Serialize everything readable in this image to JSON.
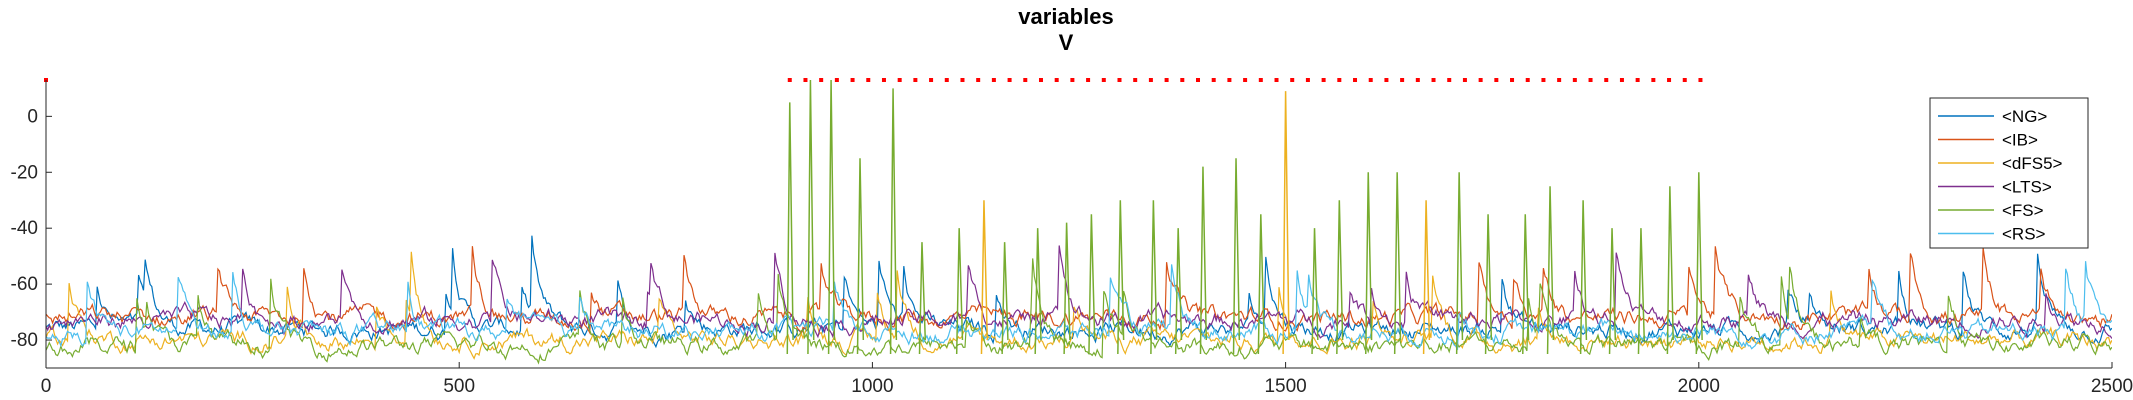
{
  "chart_data": {
    "type": "line",
    "title": [
      "variables",
      "V"
    ],
    "xlabel": "",
    "ylabel": "",
    "xlim": [
      0,
      2500
    ],
    "ylim": [
      -90,
      13
    ],
    "x_ticks": [
      0,
      500,
      1000,
      1500,
      2000,
      2500
    ],
    "y_ticks": [
      -80,
      -60,
      -40,
      -20,
      0
    ],
    "grid": false,
    "legend_position": "top-right",
    "legend": [
      "<NG>",
      "<IB>",
      "<dFS5>",
      "<LTS>",
      "<FS>",
      "<RS>"
    ],
    "series": [
      {
        "name": "<NG>",
        "color": "#0072BD",
        "baseline": -76
      },
      {
        "name": "<IB>",
        "color": "#D95319",
        "baseline": -72
      },
      {
        "name": "<dFS5>",
        "color": "#EDB120",
        "baseline": -80
      },
      {
        "name": "<LTS>",
        "color": "#7E2F8E",
        "baseline": -73
      },
      {
        "name": "<FS>",
        "color": "#77AC30",
        "baseline": -82
      },
      {
        "name": "<RS>",
        "color": "#4DBEEE",
        "baseline": -77
      }
    ],
    "raster_markers": {
      "color": "#FF0000",
      "y": 13,
      "x": [
        0,
        900,
        919,
        938,
        957,
        976,
        995,
        1014,
        1033,
        1052,
        1071,
        1090,
        1109,
        1128,
        1147,
        1166,
        1185,
        1204,
        1223,
        1242,
        1261,
        1280,
        1299,
        1318,
        1337,
        1356,
        1375,
        1394,
        1413,
        1432,
        1451,
        1470,
        1489,
        1508,
        1527,
        1546,
        1565,
        1584,
        1603,
        1622,
        1641,
        1660,
        1679,
        1698,
        1717,
        1736,
        1755,
        1774,
        1793,
        1812,
        1831,
        1850,
        1869,
        1888,
        1907,
        1926,
        1945,
        1964,
        1983,
        2002
      ]
    },
    "spikes": [
      {
        "x": 900,
        "y": 5,
        "series": "<FS>"
      },
      {
        "x": 925,
        "y": 13,
        "series": "<FS>"
      },
      {
        "x": 950,
        "y": 13,
        "series": "<FS>"
      },
      {
        "x": 985,
        "y": -15,
        "series": "<FS>"
      },
      {
        "x": 1025,
        "y": 10,
        "series": "<FS>"
      },
      {
        "x": 1060,
        "y": -45,
        "series": "<FS>"
      },
      {
        "x": 1105,
        "y": -40,
        "series": "<FS>"
      },
      {
        "x": 1135,
        "y": -30,
        "series": "<dFS5>"
      },
      {
        "x": 1160,
        "y": -45,
        "series": "<FS>"
      },
      {
        "x": 1200,
        "y": -40,
        "series": "<FS>"
      },
      {
        "x": 1235,
        "y": -38,
        "series": "<FS>"
      },
      {
        "x": 1265,
        "y": -35,
        "series": "<FS>"
      },
      {
        "x": 1300,
        "y": -30,
        "series": "<FS>"
      },
      {
        "x": 1340,
        "y": -30,
        "series": "<FS>"
      },
      {
        "x": 1370,
        "y": -40,
        "series": "<FS>"
      },
      {
        "x": 1400,
        "y": -18,
        "series": "<FS>"
      },
      {
        "x": 1440,
        "y": -15,
        "series": "<FS>"
      },
      {
        "x": 1470,
        "y": -35,
        "series": "<FS>"
      },
      {
        "x": 1500,
        "y": 9,
        "series": "<dFS5>"
      },
      {
        "x": 1535,
        "y": -40,
        "series": "<FS>"
      },
      {
        "x": 1565,
        "y": -30,
        "series": "<FS>"
      },
      {
        "x": 1600,
        "y": -20,
        "series": "<FS>"
      },
      {
        "x": 1635,
        "y": -20,
        "series": "<FS>"
      },
      {
        "x": 1670,
        "y": -30,
        "series": "<dFS5>"
      },
      {
        "x": 1710,
        "y": -20,
        "series": "<FS>"
      },
      {
        "x": 1745,
        "y": -35,
        "series": "<FS>"
      },
      {
        "x": 1790,
        "y": -35,
        "series": "<FS>"
      },
      {
        "x": 1820,
        "y": -25,
        "series": "<FS>"
      },
      {
        "x": 1860,
        "y": -30,
        "series": "<FS>"
      },
      {
        "x": 1895,
        "y": -40,
        "series": "<FS>"
      },
      {
        "x": 1930,
        "y": -40,
        "series": "<FS>"
      },
      {
        "x": 1965,
        "y": -25,
        "series": "<FS>"
      },
      {
        "x": 2000,
        "y": -20,
        "series": "<FS>"
      }
    ]
  }
}
